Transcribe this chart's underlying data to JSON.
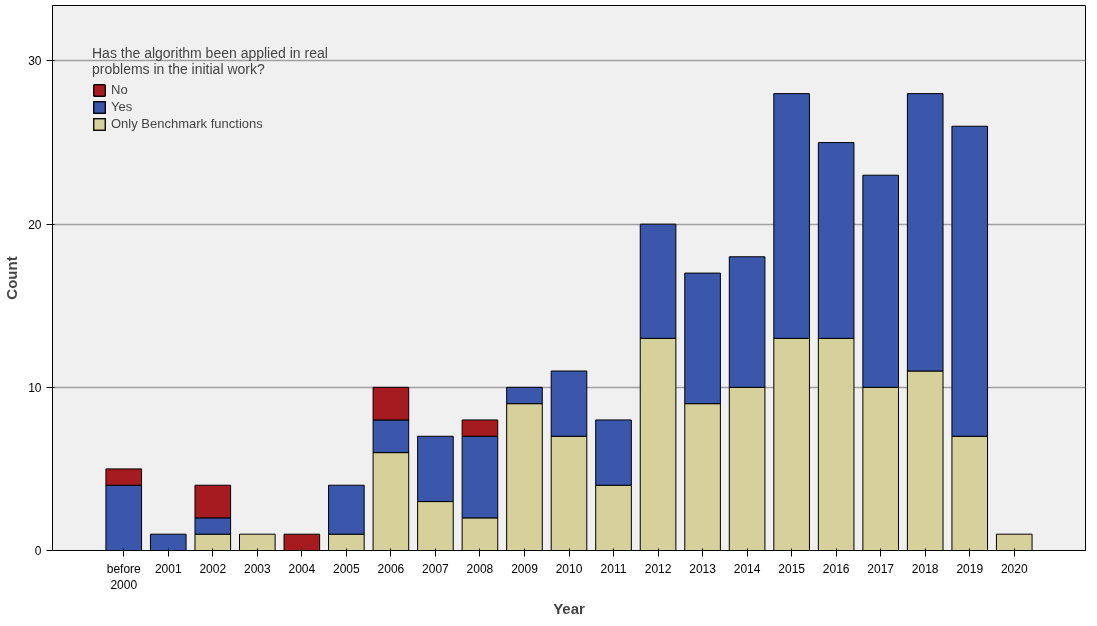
{
  "chart_data": {
    "type": "bar",
    "stacked": true,
    "xlabel": "Year",
    "ylabel": "Count",
    "legend_title": "Has the algorithm been applied in real problems in the initial work?",
    "categories": [
      "before 2000",
      "2001",
      "2002",
      "2003",
      "2004",
      "2005",
      "2006",
      "2007",
      "2008",
      "2009",
      "2010",
      "2011",
      "2012",
      "2013",
      "2014",
      "2015",
      "2016",
      "2017",
      "2018",
      "2019",
      "2020"
    ],
    "series": [
      {
        "name": "Only Benchmark functions",
        "color": "#d6d09b",
        "values": [
          0,
          0,
          1,
          1,
          0,
          1,
          6,
          3,
          2,
          9,
          7,
          4,
          13,
          9,
          10,
          13,
          13,
          10,
          11,
          7,
          1
        ]
      },
      {
        "name": "Yes",
        "color": "#3b57ac",
        "values": [
          4,
          1,
          1,
          0,
          0,
          3,
          2,
          4,
          5,
          1,
          4,
          4,
          7,
          8,
          8,
          15,
          12,
          13,
          17,
          19,
          0
        ]
      },
      {
        "name": "No",
        "color": "#a51b1f",
        "values": [
          1,
          0,
          2,
          0,
          1,
          0,
          2,
          0,
          1,
          0,
          0,
          0,
          0,
          0,
          0,
          0,
          0,
          0,
          0,
          0,
          0
        ]
      }
    ],
    "ylim": [
      0,
      33.4
    ],
    "yticks": [
      0,
      10,
      20,
      30
    ],
    "grid": "y",
    "legend": "top left"
  }
}
